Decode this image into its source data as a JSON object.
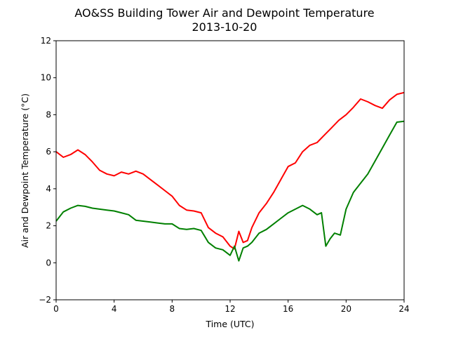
{
  "chart_data": {
    "type": "line",
    "title": "AO&SS Building Tower Air and Dewpoint Temperature",
    "subtitle": "2013-10-20",
    "xlabel": "Time (UTC)",
    "ylabel": "Air and Dewpoint Temperature (°C)",
    "xlim": [
      0,
      24
    ],
    "ylim": [
      -2,
      12
    ],
    "xticks": [
      "0",
      "4",
      "8",
      "12",
      "16",
      "20",
      "24"
    ],
    "yticks": [
      "−2",
      "0",
      "2",
      "4",
      "6",
      "8",
      "10",
      "12"
    ],
    "grid": false,
    "legend": "none",
    "series": [
      {
        "color": "#ff0000",
        "x": [
          0,
          0.5,
          1,
          1.5,
          2,
          2.5,
          3,
          3.5,
          4,
          4.5,
          5,
          5.5,
          6,
          6.5,
          7,
          7.5,
          8,
          8.5,
          9,
          9.5,
          10,
          10.5,
          11,
          11.5,
          12,
          12.3,
          12.6,
          12.9,
          13.2,
          13.5,
          14,
          14.5,
          15,
          15.5,
          16,
          16.5,
          17,
          17.5,
          18,
          18.5,
          19,
          19.5,
          20,
          20.5,
          21,
          21.5,
          22,
          22.5,
          23,
          23.5,
          24
        ],
        "y": [
          6.0,
          5.7,
          5.85,
          6.1,
          5.85,
          5.45,
          5.0,
          4.8,
          4.7,
          4.9,
          4.8,
          4.95,
          4.8,
          4.5,
          4.2,
          3.9,
          3.6,
          3.1,
          2.85,
          2.8,
          2.7,
          1.9,
          1.6,
          1.4,
          0.9,
          0.75,
          1.7,
          1.1,
          1.2,
          1.9,
          2.7,
          3.2,
          3.8,
          4.5,
          5.2,
          5.4,
          6.0,
          6.35,
          6.5,
          6.9,
          7.3,
          7.7,
          8.0,
          8.4,
          8.85,
          8.7,
          8.5,
          8.35,
          8.8,
          9.1,
          9.2
        ]
      },
      {
        "color": "#008000",
        "x": [
          0,
          0.5,
          1,
          1.5,
          2,
          2.5,
          3,
          3.5,
          4,
          4.5,
          5,
          5.5,
          6,
          6.5,
          7,
          7.5,
          8,
          8.5,
          9,
          9.5,
          10,
          10.5,
          11,
          11.5,
          12,
          12.3,
          12.6,
          12.9,
          13.2,
          13.5,
          14,
          14.5,
          15,
          15.5,
          16,
          16.5,
          17,
          17.5,
          18,
          18.3,
          18.6,
          18.9,
          19.2,
          19.6,
          20,
          20.5,
          21,
          21.5,
          22,
          22.5,
          23,
          23.5,
          24
        ],
        "y": [
          2.25,
          2.75,
          2.95,
          3.1,
          3.05,
          2.95,
          2.9,
          2.85,
          2.8,
          2.7,
          2.6,
          2.3,
          2.25,
          2.2,
          2.15,
          2.1,
          2.1,
          1.85,
          1.8,
          1.85,
          1.75,
          1.1,
          0.8,
          0.7,
          0.4,
          0.9,
          0.1,
          0.8,
          0.9,
          1.1,
          1.6,
          1.8,
          2.1,
          2.4,
          2.7,
          2.9,
          3.1,
          2.9,
          2.6,
          2.7,
          0.9,
          1.3,
          1.6,
          1.5,
          2.9,
          3.8,
          4.3,
          4.8,
          5.5,
          6.2,
          6.9,
          7.6,
          7.65
        ]
      }
    ]
  }
}
